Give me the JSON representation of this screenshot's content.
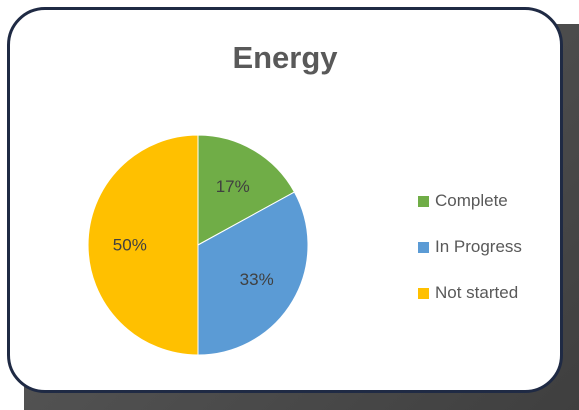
{
  "chart_data": {
    "type": "pie",
    "title": "Energy",
    "series": [
      {
        "name": "Complete",
        "value": 17,
        "label": "17%",
        "color": "#70AD47"
      },
      {
        "name": "In Progress",
        "value": 33,
        "label": "33%",
        "color": "#5B9BD5"
      },
      {
        "name": "Not started",
        "value": 50,
        "label": "50%",
        "color": "#FFC000"
      }
    ],
    "legend_position": "right",
    "start_angle_deg": 0,
    "direction": "clockwise"
  }
}
